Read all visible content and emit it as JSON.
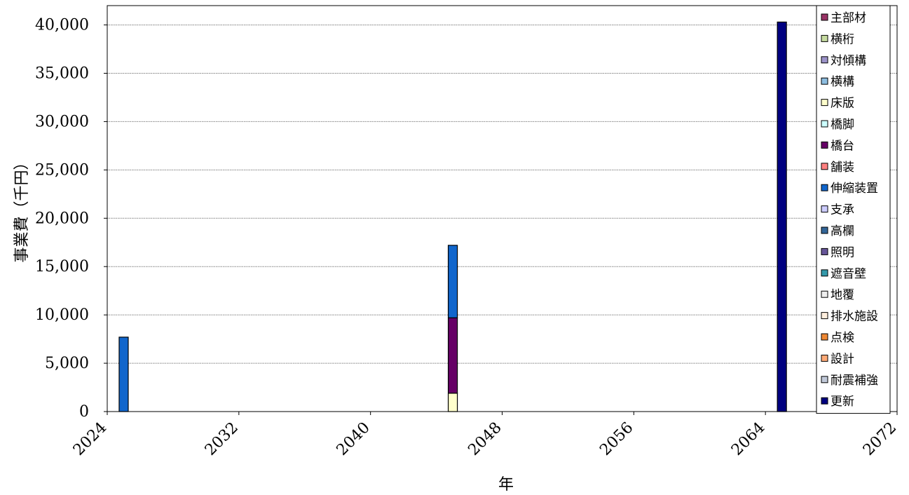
{
  "chart_data": {
    "type": "bar",
    "stacked": true,
    "title": "",
    "xlabel": "年",
    "ylabel": "事業費（千円）",
    "xlim": [
      2024,
      2072
    ],
    "x_ticks": [
      "2024",
      "2032",
      "2040",
      "2048",
      "2056",
      "2064",
      "2072"
    ],
    "ylim": [
      0,
      42000
    ],
    "y_ticks": [
      "0",
      "5,000",
      "10,000",
      "15,000",
      "20,000",
      "25,000",
      "30,000",
      "35,000",
      "40,000"
    ],
    "y_tick_values": [
      0,
      5000,
      10000,
      15000,
      20000,
      25000,
      30000,
      35000,
      40000
    ],
    "grid": true,
    "legend_position": "right",
    "categories": [
      2025,
      2045,
      2065
    ],
    "series": [
      {
        "name": "主部材",
        "color": "#993366",
        "values": [
          0,
          0,
          0
        ]
      },
      {
        "name": "横桁",
        "color": "#c6dba0",
        "values": [
          0,
          0,
          0
        ]
      },
      {
        "name": "対傾構",
        "color": "#9c93c9",
        "values": [
          0,
          0,
          0
        ]
      },
      {
        "name": "横構",
        "color": "#8dbde0",
        "values": [
          0,
          0,
          0
        ]
      },
      {
        "name": "床版",
        "color": "#ffffcc",
        "values": [
          0,
          1900,
          0
        ]
      },
      {
        "name": "橋脚",
        "color": "#ccffff",
        "values": [
          0,
          0,
          0
        ]
      },
      {
        "name": "橋台",
        "color": "#660066",
        "values": [
          0,
          7800,
          0
        ]
      },
      {
        "name": "舗装",
        "color": "#ff8080",
        "values": [
          0,
          0,
          0
        ]
      },
      {
        "name": "伸縮装置",
        "color": "#1166cc",
        "values": [
          7700,
          7500,
          0
        ]
      },
      {
        "name": "支承",
        "color": "#ccccff",
        "values": [
          0,
          0,
          0
        ]
      },
      {
        "name": "高欄",
        "color": "#336699",
        "values": [
          0,
          0,
          0
        ]
      },
      {
        "name": "照明",
        "color": "#665599",
        "values": [
          0,
          0,
          0
        ]
      },
      {
        "name": "遮音壁",
        "color": "#3399aa",
        "values": [
          0,
          0,
          0
        ]
      },
      {
        "name": "地覆",
        "color": "#eeeeee",
        "values": [
          0,
          0,
          0
        ]
      },
      {
        "name": "排水施設",
        "color": "#ffeedd",
        "values": [
          0,
          0,
          0
        ]
      },
      {
        "name": "点検",
        "color": "#ee8833",
        "values": [
          0,
          0,
          0
        ]
      },
      {
        "name": "設計",
        "color": "#ffaa77",
        "values": [
          0,
          0,
          0
        ]
      },
      {
        "name": "耐震補強",
        "color": "#c0c8d8",
        "values": [
          0,
          0,
          0
        ]
      },
      {
        "name": "更新",
        "color": "#000080",
        "values": [
          0,
          0,
          40300
        ]
      }
    ]
  }
}
